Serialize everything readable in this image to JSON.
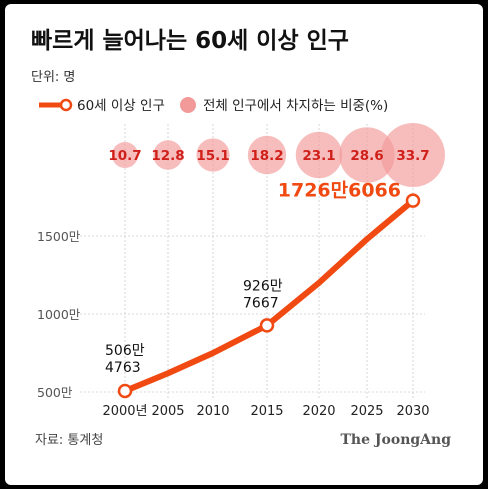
{
  "chart_data": {
    "type": "line",
    "title": "빠르게 늘어나는 60세 이상 인구",
    "unit_label": "단위: 명",
    "legend": [
      {
        "label": "60세 이상 인구",
        "color": "#f04a12",
        "shape": "line-with-circle"
      },
      {
        "label": "전체 인구에서 차지하는 비중(%)",
        "color": "#f29a9a",
        "shape": "circle"
      }
    ],
    "x": [
      "2000년",
      "2005",
      "2010",
      "2015",
      "2020",
      "2025",
      "2030"
    ],
    "series": [
      {
        "name": "60세 이상 인구",
        "values": [
          5064763,
          6200000,
          7500000,
          9267667,
          12000000,
          14800000,
          17266066
        ],
        "color": "#f04a12"
      }
    ],
    "shares": [
      10.7,
      12.8,
      15.1,
      18.2,
      23.1,
      28.6,
      33.7
    ],
    "share_labels": [
      "10.7",
      "12.8",
      "15.1",
      "18.2",
      "23.1",
      "28.6",
      "33.7"
    ],
    "yticks": [
      {
        "value": 5000000,
        "label": "500만"
      },
      {
        "value": 10000000,
        "label": "1000만"
      },
      {
        "value": 15000000,
        "label": "1500만"
      }
    ],
    "ylim": [
      5000000,
      17500000
    ],
    "annotations": [
      {
        "point_index": 0,
        "lines": [
          "506만",
          "4763"
        ]
      },
      {
        "point_index": 3,
        "lines": [
          "926만",
          "7667"
        ]
      },
      {
        "point_index": 6,
        "lines": [
          "1726만6066"
        ]
      }
    ],
    "source": "자료: 통계청",
    "brand": "The JoongAng",
    "colors": {
      "line": "#f04a12",
      "bubble": "#f29a9a",
      "bubble_text": "#d0201a",
      "grid": "#cccccc",
      "text": "#222222",
      "muted": "#555555"
    }
  }
}
